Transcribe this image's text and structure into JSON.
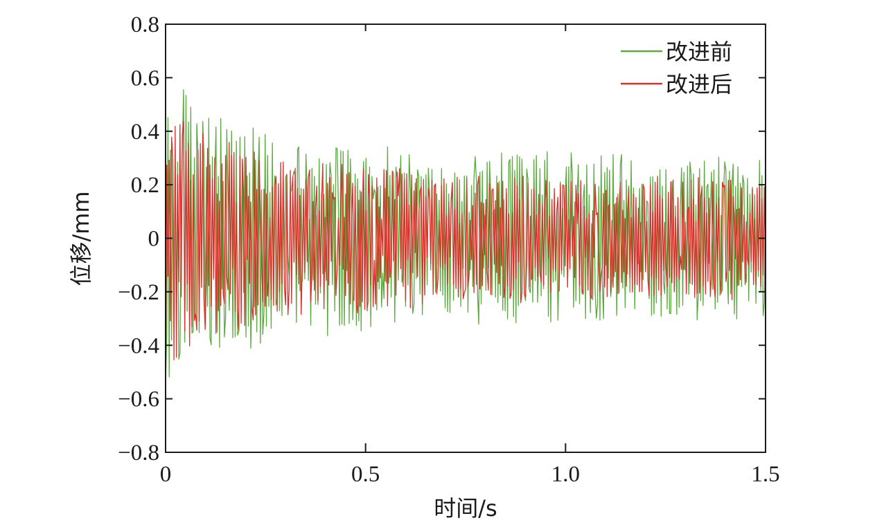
{
  "chart_data": {
    "type": "line",
    "title": "",
    "xlabel": "时间/s",
    "ylabel": "位移/mm",
    "xlim": [
      0,
      1.5
    ],
    "ylim": [
      -0.8,
      0.8
    ],
    "x_ticks": [
      0,
      0.5,
      1.0,
      1.5
    ],
    "x_tick_labels": [
      "0",
      "0.5",
      "1.0",
      "1.5"
    ],
    "y_ticks": [
      0.8,
      0.6,
      0.4,
      0.2,
      0,
      -0.2,
      -0.4,
      -0.6,
      -0.8
    ],
    "y_tick_labels": [
      "0.8",
      "0.6",
      "0.4",
      "0.2",
      "0",
      "−0.2",
      "−0.4",
      "−0.6",
      "−0.8"
    ],
    "grid": false,
    "legend_position": "top-right",
    "sample_interval_s": 0.003,
    "series": [
      {
        "name": "改进前",
        "color": "#5aaa3c",
        "envelope": {
          "t": [
            0,
            0.02,
            0.05,
            0.1,
            0.2,
            0.3,
            0.5,
            0.7,
            0.9,
            1.0,
            1.2,
            1.5
          ],
          "amplitude": [
            0.62,
            0.6,
            0.55,
            0.48,
            0.42,
            0.36,
            0.34,
            0.3,
            0.34,
            0.32,
            0.3,
            0.3
          ]
        }
      },
      {
        "name": "改进后",
        "color": "#d8302a",
        "envelope": {
          "t": [
            0,
            0.02,
            0.05,
            0.1,
            0.2,
            0.3,
            0.5,
            0.7,
            0.9,
            1.0,
            1.2,
            1.5
          ],
          "amplitude": [
            0.6,
            0.52,
            0.45,
            0.38,
            0.33,
            0.28,
            0.28,
            0.23,
            0.24,
            0.22,
            0.22,
            0.22
          ]
        }
      }
    ]
  }
}
